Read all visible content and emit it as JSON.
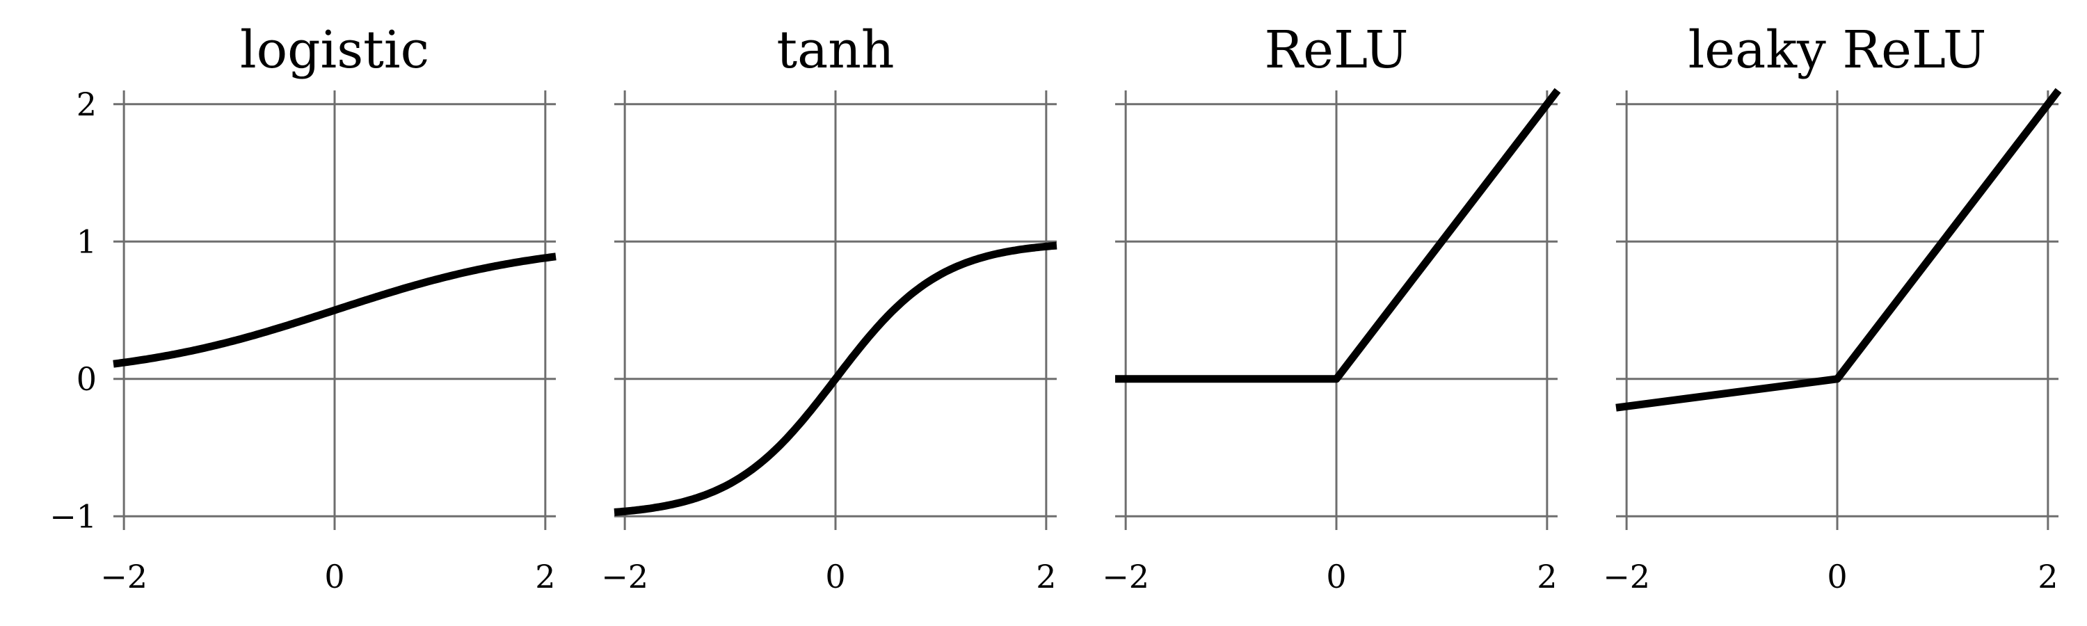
{
  "chart_data": [
    {
      "type": "line",
      "title": "logistic",
      "function": "logistic",
      "xlim": [
        -2.1,
        2.1
      ],
      "ylim": [
        -1.1,
        2.1
      ],
      "xticks": [
        -2,
        0,
        2
      ],
      "xtick_labels": [
        "−2",
        "0",
        "2"
      ],
      "yticks": [
        -1,
        0,
        1,
        2
      ],
      "ytick_labels": [
        "−1",
        "0",
        "1",
        "2"
      ],
      "grid": true,
      "series": [
        {
          "x": [
            -2.1,
            -1.5,
            -1,
            -0.5,
            0,
            0.5,
            1,
            1.5,
            2.1
          ],
          "y": [
            0.109,
            0.182,
            0.269,
            0.378,
            0.5,
            0.622,
            0.731,
            0.818,
            0.891
          ]
        }
      ]
    },
    {
      "type": "line",
      "title": "tanh",
      "function": "tanh",
      "xlim": [
        -2.1,
        2.1
      ],
      "ylim": [
        -1.1,
        2.1
      ],
      "xticks": [
        -2,
        0,
        2
      ],
      "xtick_labels": [
        "−2",
        "0",
        "2"
      ],
      "yticks": [
        -1,
        0,
        1,
        2
      ],
      "ytick_labels": [
        "",
        "",
        "",
        ""
      ],
      "grid": true,
      "series": [
        {
          "x": [
            -2.1,
            -1.5,
            -1,
            -0.5,
            0,
            0.5,
            1,
            1.5,
            2.1
          ],
          "y": [
            -0.97,
            -0.905,
            -0.762,
            -0.462,
            0,
            0.462,
            0.762,
            0.905,
            0.97
          ]
        }
      ]
    },
    {
      "type": "line",
      "title": "ReLU",
      "function": "relu",
      "xlim": [
        -2.1,
        2.1
      ],
      "ylim": [
        -1.1,
        2.1
      ],
      "xticks": [
        -2,
        0,
        2
      ],
      "xtick_labels": [
        "−2",
        "0",
        "2"
      ],
      "yticks": [
        -1,
        0,
        1,
        2
      ],
      "ytick_labels": [
        "",
        "",
        "",
        ""
      ],
      "grid": true,
      "series": [
        {
          "x": [
            -2.1,
            0,
            2.1
          ],
          "y": [
            0,
            0,
            2.1
          ]
        }
      ]
    },
    {
      "type": "line",
      "title": "leaky ReLU",
      "function": "leaky_relu",
      "xlim": [
        -2.1,
        2.1
      ],
      "ylim": [
        -1.1,
        2.1
      ],
      "xticks": [
        -2,
        0,
        2
      ],
      "xtick_labels": [
        "−2",
        "0",
        "2"
      ],
      "yticks": [
        -1,
        0,
        1,
        2
      ],
      "ytick_labels": [
        "",
        "",
        "",
        ""
      ],
      "grid": true,
      "series": [
        {
          "x": [
            -2.1,
            0,
            2.1
          ],
          "y": [
            -0.21,
            0,
            2.1
          ]
        }
      ]
    }
  ]
}
